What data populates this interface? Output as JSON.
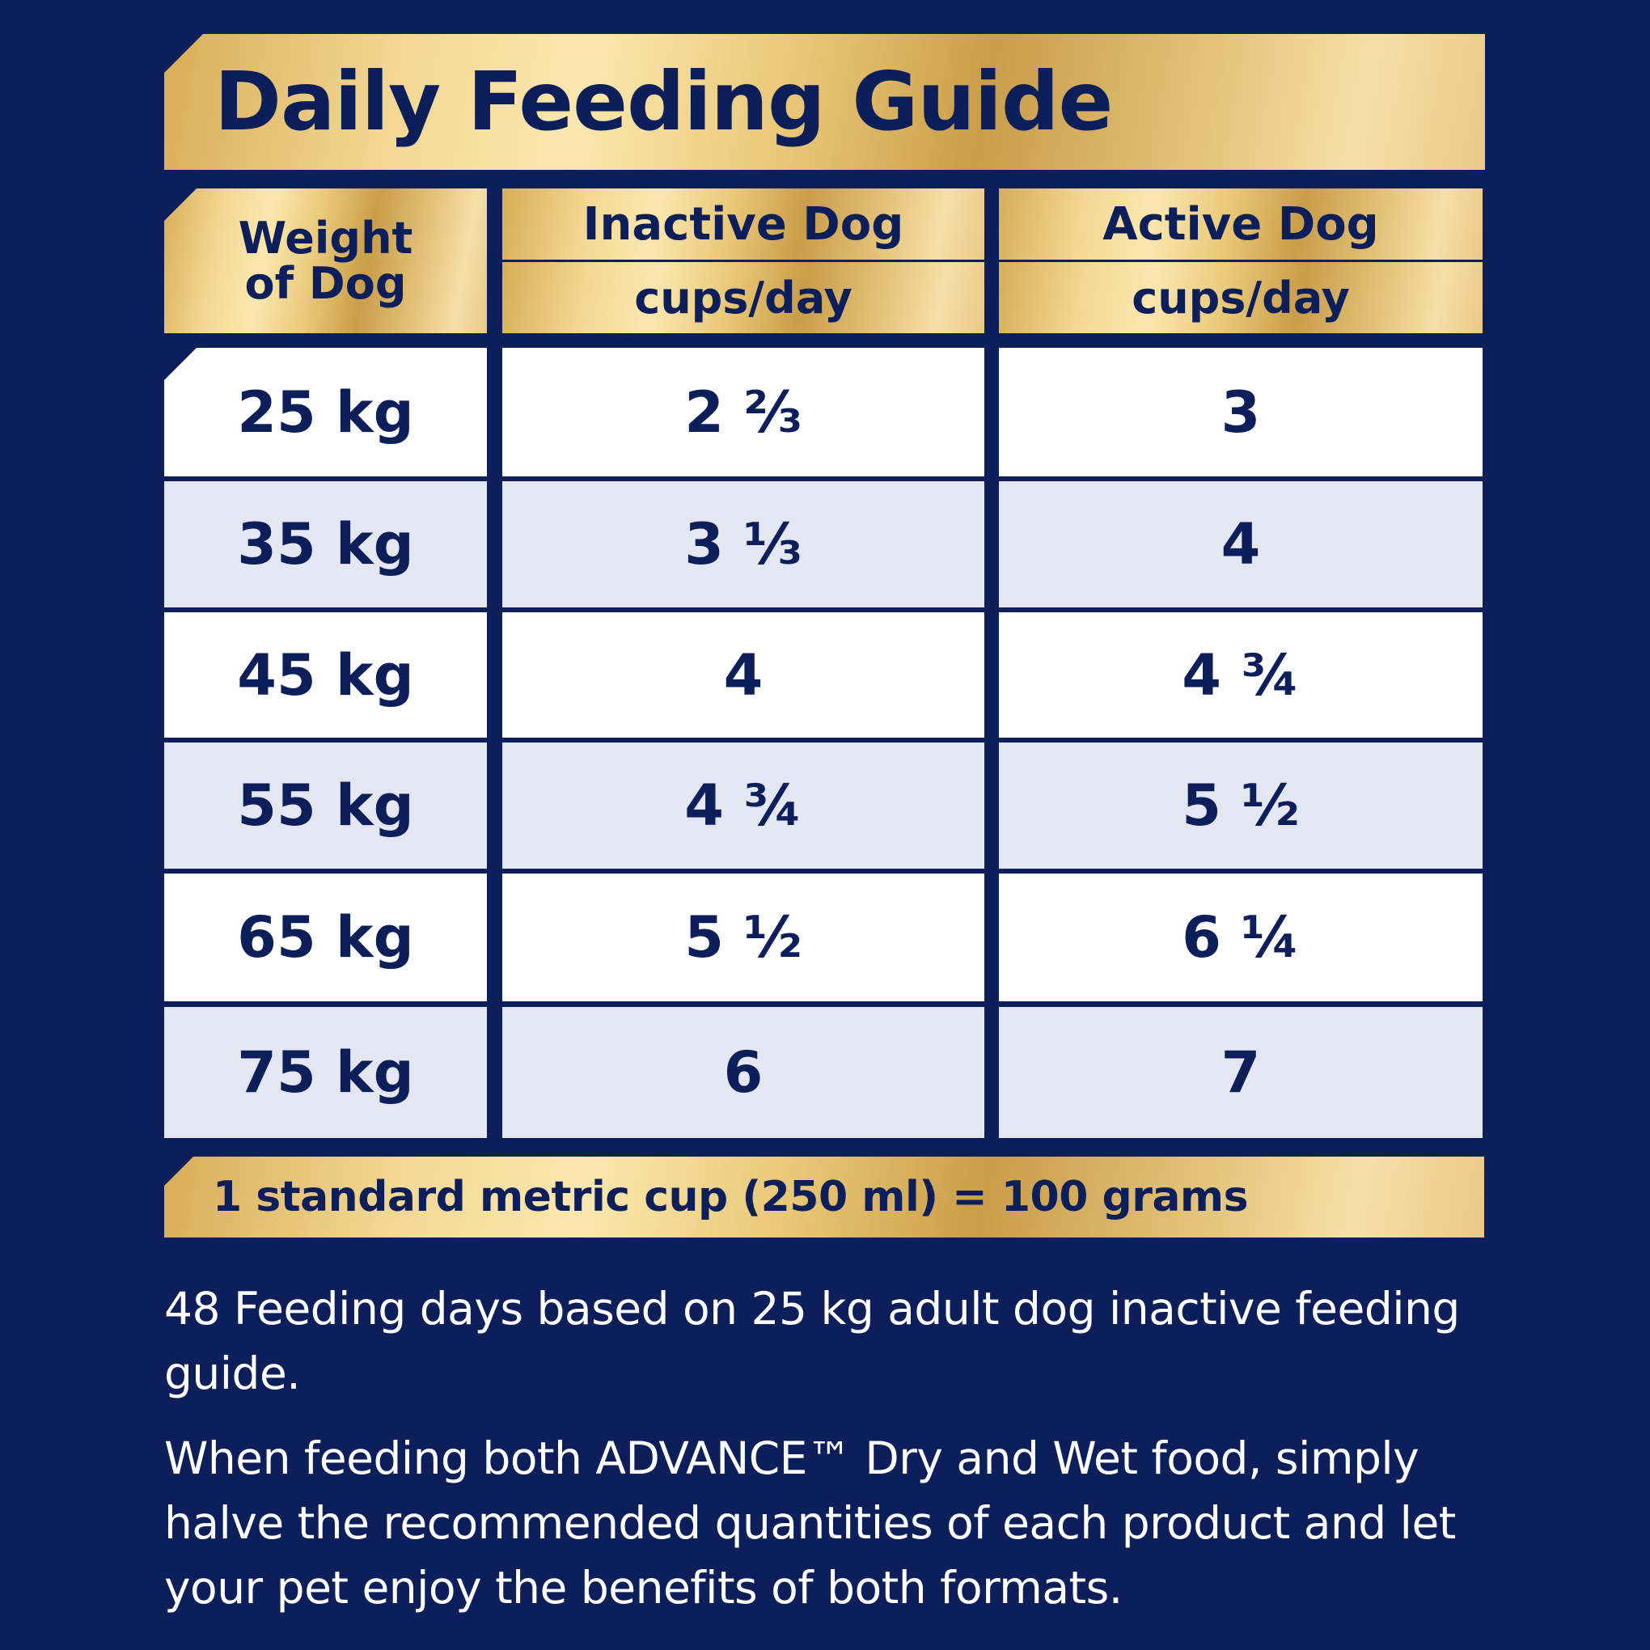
{
  "title": "Daily Feeding Guide",
  "columns": {
    "weight": [
      "Weight",
      "of Dog"
    ],
    "inactive": {
      "label": "Inactive Dog",
      "unit": "cups/day"
    },
    "active": {
      "label": "Active Dog",
      "unit": "cups/day"
    }
  },
  "rows": [
    {
      "weight": "25 kg",
      "inactive": "2 ⅔",
      "active": "3"
    },
    {
      "weight": "35 kg",
      "inactive": "3 ⅓",
      "active": "4"
    },
    {
      "weight": "45 kg",
      "inactive": "4",
      "active": "4 ¾"
    },
    {
      "weight": "55 kg",
      "inactive": "4 ¾",
      "active": "5 ½"
    },
    {
      "weight": "65 kg",
      "inactive": "5 ½",
      "active": "6 ¼"
    },
    {
      "weight": "75 kg",
      "inactive": "6",
      "active": "7"
    }
  ],
  "footer": "1 standard metric cup (250 ml) = 100 grams",
  "notes": [
    "48 Feeding days based on 25 kg adult dog inactive feeding guide.",
    "When feeding both ADVANCE™ Dry and Wet food, simply halve the recommended quantities of each product and let your pet enjoy the benefits of both formats."
  ],
  "colors": {
    "navy": "#0c1f5b",
    "gold": "#e8c675",
    "row_alt": "#e4e7f1",
    "white": "#ffffff"
  }
}
